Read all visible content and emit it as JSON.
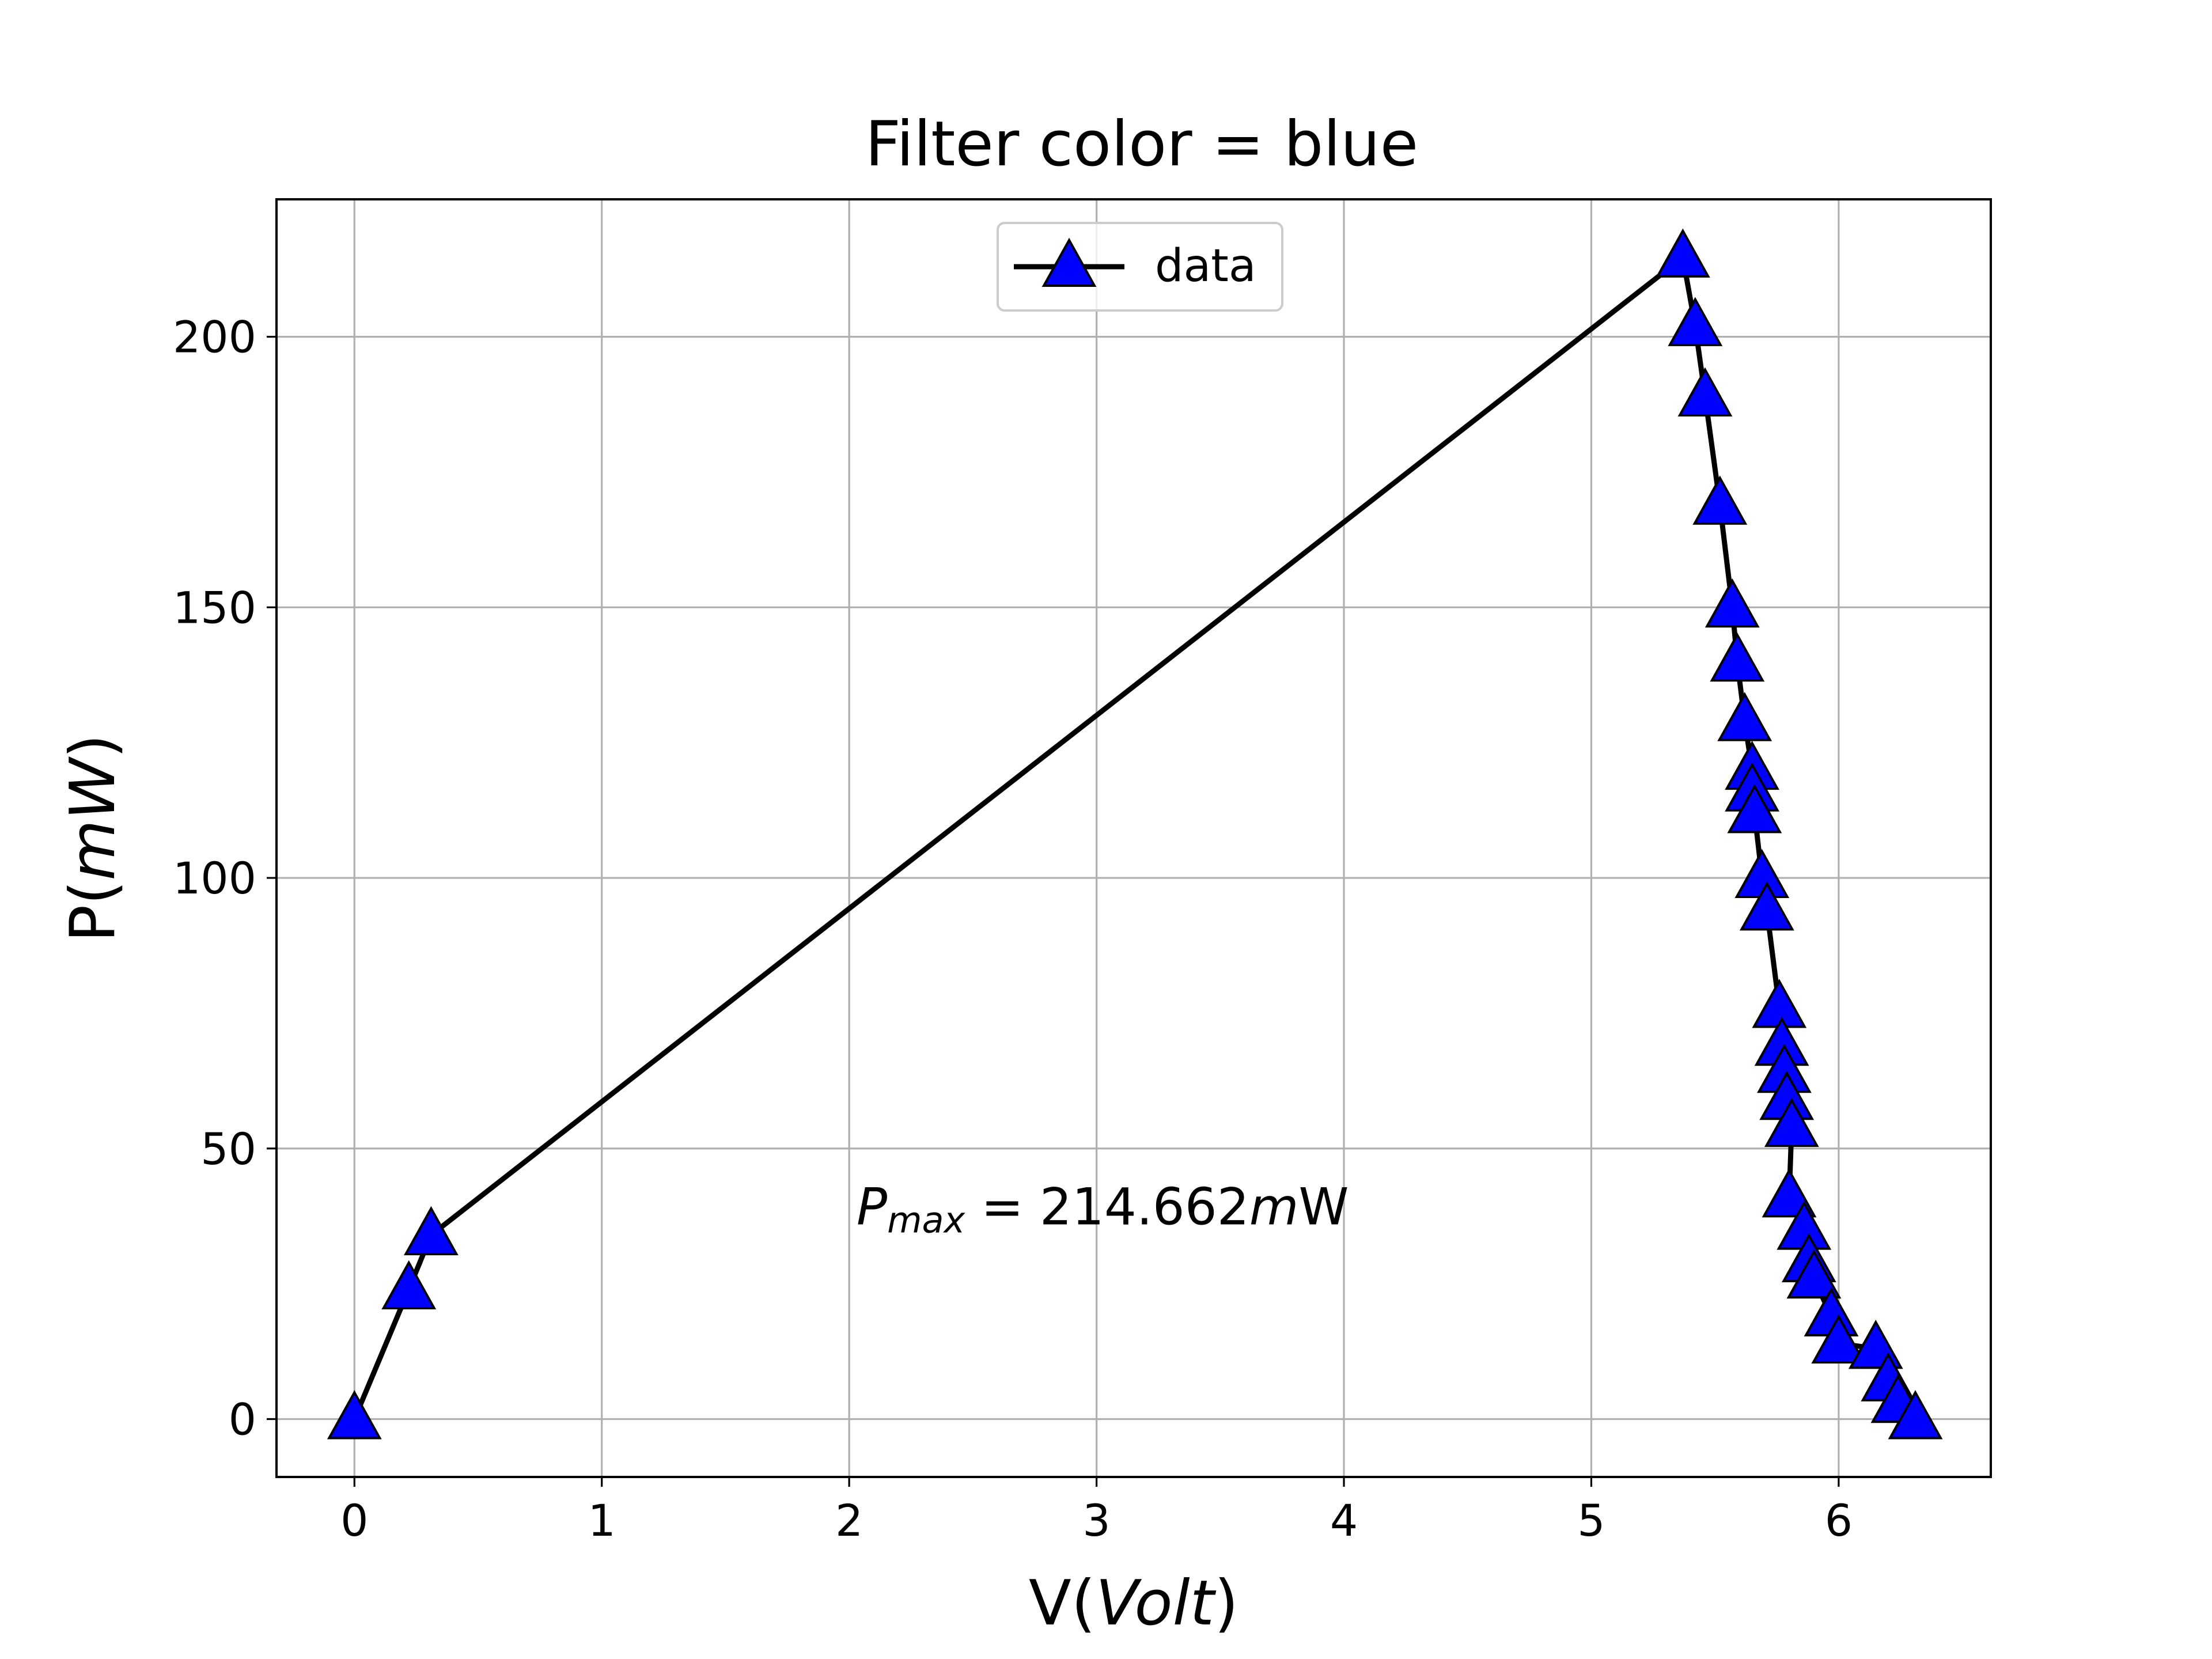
{
  "chart_data": {
    "type": "line",
    "title": "Filter color = blue",
    "xlabel_prefix": "V(",
    "xlabel_italic": "Volt",
    "xlabel_suffix": ")",
    "ylabel_prefix": "P(",
    "ylabel_italic": "mW",
    "ylabel_suffix": ")",
    "xlim": [
      -0.315,
      6.615
    ],
    "ylim": [
      -10.7,
      225.4
    ],
    "xticks": [
      0,
      1,
      2,
      3,
      4,
      5,
      6
    ],
    "yticks": [
      0,
      50,
      100,
      150,
      200
    ],
    "grid": true,
    "legend_position": "upper center",
    "series": [
      {
        "name": "data",
        "line_color": "#000000",
        "marker": "triangle-up",
        "marker_face": "#0000ff",
        "marker_edge": "#000000",
        "x": [
          0.0,
          0.22,
          0.31,
          5.37,
          5.42,
          5.46,
          5.52,
          5.57,
          5.59,
          5.62,
          5.65,
          5.65,
          5.66,
          5.69,
          5.71,
          5.76,
          5.77,
          5.78,
          5.79,
          5.81,
          5.8,
          5.86,
          5.88,
          5.9,
          5.97,
          6.0,
          6.15,
          6.2,
          6.24,
          6.31
        ],
        "y": [
          0,
          24,
          34,
          214.662,
          202,
          189,
          169,
          150,
          140,
          129,
          120,
          116,
          112,
          100,
          94,
          76,
          69,
          64,
          59,
          54,
          41,
          35,
          29,
          26,
          19,
          14,
          13,
          7,
          3,
          0
        ]
      }
    ],
    "annotation": {
      "symbol": "P",
      "subscript": "max",
      "equals": " = 214.662",
      "unit_italic": "m",
      "unit_plain": "W",
      "x": 2.03,
      "y": 36
    }
  }
}
